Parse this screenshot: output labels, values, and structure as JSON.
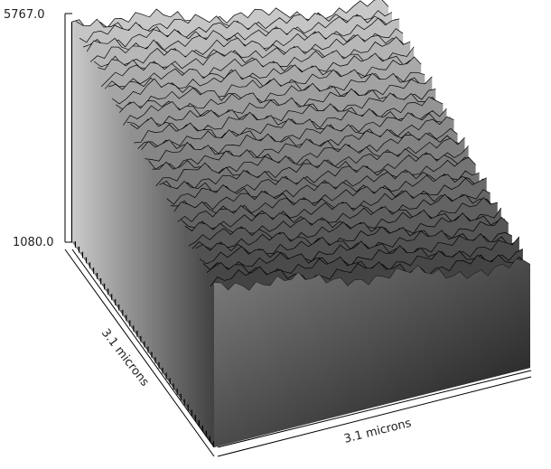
{
  "chart_data": {
    "type": "surface",
    "z_axis": {
      "min_label": "1080.0",
      "max_label": "5767.0",
      "range": [
        1080.0,
        5767.0
      ]
    },
    "x_axis_label": "3.1 microns",
    "y_axis_label": "3.1 microns",
    "grid": false,
    "legend": "none",
    "colormap": "grayscale",
    "surface_profiles_sampled": [
      [
        5600,
        5500,
        5450,
        5350,
        5250,
        5150,
        5050,
        4950,
        4850,
        4750,
        4650,
        4550,
        4500,
        4450,
        4400,
        4300
      ],
      [
        5350,
        5450,
        5250,
        5300,
        5100,
        5000,
        5050,
        4900,
        4700,
        4600,
        4550,
        4450,
        4350,
        4300,
        4250,
        4150
      ],
      [
        5200,
        5150,
        5250,
        5050,
        5000,
        4800,
        4850,
        4650,
        4600,
        4500,
        4400,
        4300,
        4250,
        4150,
        4050,
        4000
      ],
      [
        5050,
        5100,
        4950,
        4900,
        4700,
        4750,
        4600,
        4500,
        4450,
        4300,
        4250,
        4150,
        4050,
        4000,
        3950,
        3850
      ],
      [
        4900,
        4800,
        4850,
        4650,
        4600,
        4500,
        4400,
        4300,
        4250,
        4200,
        4050,
        3950,
        3950,
        3850,
        3750,
        3700
      ],
      [
        4750,
        4700,
        4550,
        4550,
        4400,
        4350,
        4200,
        4150,
        4050,
        3950,
        3900,
        3800,
        3700,
        3650,
        3600,
        3500
      ],
      [
        4550,
        4500,
        4450,
        4300,
        4250,
        4100,
        4050,
        3950,
        3900,
        3800,
        3700,
        3650,
        3550,
        3500,
        3400,
        3350
      ],
      [
        4400,
        4350,
        4250,
        4150,
        4050,
        3950,
        3900,
        3800,
        3700,
        3650,
        3550,
        3450,
        3400,
        3300,
        3250,
        3200
      ]
    ]
  }
}
